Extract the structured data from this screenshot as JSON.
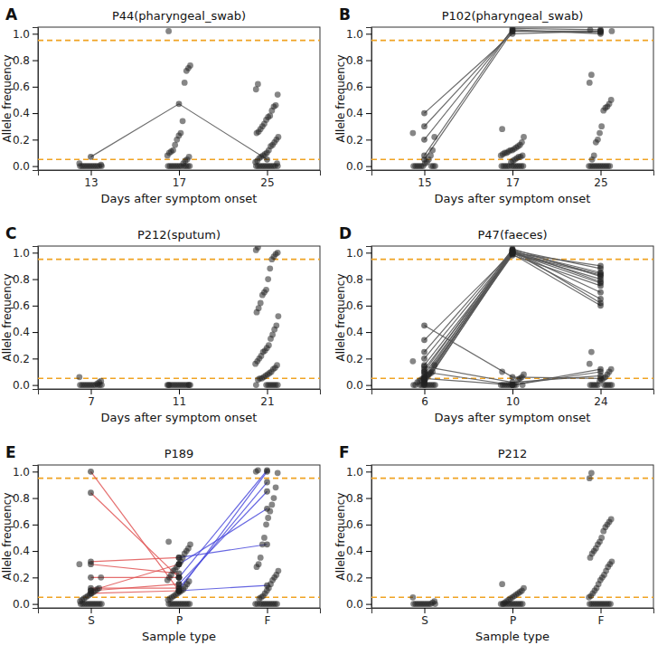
{
  "chart_data": [
    {
      "type": "scatter",
      "panel_label": "A",
      "title": "P44(pharyngeal_swab)",
      "x_label": "Days after symptom onset",
      "y_label": "Allele frequency",
      "categories": [
        "13",
        "17",
        "25"
      ],
      "ylim": [
        -0.03,
        1.05
      ],
      "yticks": [
        {
          "value": 0,
          "label": "0.0"
        },
        {
          "value": 0.2,
          "label": "0.2"
        },
        {
          "value": 0.4,
          "label": "0.4"
        },
        {
          "value": 0.6,
          "label": "0.6"
        },
        {
          "value": 0.8,
          "label": "0.8"
        },
        {
          "value": 1,
          "label": "1.0"
        }
      ],
      "reference_lines": [
        0.05,
        0.95
      ],
      "series": [
        {
          "color": "#555555",
          "values": [
            0.07,
            0.47,
            0.05
          ]
        }
      ],
      "points": [
        [
          0.02,
          0.01,
          0,
          0,
          0,
          0,
          0,
          0,
          0,
          0,
          0,
          0,
          0,
          0
        ],
        [
          1.02,
          0.76,
          0.74,
          0.72,
          0.63,
          0.34,
          0.25,
          0.23,
          0.2,
          0.16,
          0.12,
          0.11,
          0.1,
          0.08,
          0.07,
          0.05,
          0.04,
          0.02,
          0,
          0,
          0,
          0,
          0,
          0,
          0,
          0,
          0,
          0,
          0,
          0
        ],
        [
          0.62,
          0.58,
          0.54,
          0.46,
          0.45,
          0.42,
          0.38,
          0.37,
          0.35,
          0.32,
          0.3,
          0.28,
          0.26,
          0.25,
          0.22,
          0.2,
          0.18,
          0.16,
          0.15,
          0.12,
          0.1,
          0.09,
          0.08,
          0.07,
          0.06,
          0.04,
          0.03,
          0.02,
          0,
          0,
          0,
          0,
          0,
          0,
          0,
          0,
          0,
          0,
          0,
          0
        ]
      ]
    },
    {
      "type": "scatter",
      "panel_label": "B",
      "title": "P102(pharyngeal_swab)",
      "x_label": "Days after symptom onset",
      "y_label": "Allele frequency",
      "categories": [
        "15",
        "17",
        "25"
      ],
      "ylim": [
        -0.03,
        1.05
      ],
      "yticks": [
        {
          "value": 0,
          "label": "0.0"
        },
        {
          "value": 0.2,
          "label": "0.2"
        },
        {
          "value": 0.4,
          "label": "0.4"
        },
        {
          "value": 0.6,
          "label": "0.6"
        },
        {
          "value": 0.8,
          "label": "0.8"
        },
        {
          "value": 1,
          "label": "1.0"
        }
      ],
      "reference_lines": [
        0.05,
        0.95
      ],
      "series": [
        {
          "color": "#555555",
          "values": [
            0.4,
            1.0,
            1.02
          ]
        },
        {
          "color": "#555555",
          "values": [
            0.3,
            1.02,
            1.01
          ]
        },
        {
          "color": "#555555",
          "values": [
            0.2,
            1.03,
            1.0
          ]
        },
        {
          "color": "#555555",
          "values": [
            0.08,
            1.04,
            1.03
          ]
        },
        {
          "color": "#555555",
          "values": [
            0.05,
            1.02,
            1.02
          ]
        }
      ],
      "points": [
        [
          0.25,
          0.22,
          0.12,
          0.08,
          0.05,
          0.03,
          0.02,
          0,
          0,
          0,
          0,
          0,
          0,
          0,
          0,
          0
        ],
        [
          0.28,
          0.22,
          0.18,
          0.16,
          0.15,
          0.14,
          0.13,
          0.12,
          0.12,
          0.11,
          0.1,
          0.1,
          0.09,
          0.08,
          0.08,
          0.07,
          0.07,
          0.06,
          0.05,
          0.04,
          0.03,
          0,
          0,
          0,
          0,
          0,
          0,
          0,
          0,
          0,
          0,
          0,
          0
        ],
        [
          0.69,
          0.63,
          0.5,
          0.47,
          0.45,
          0.44,
          0.42,
          0.3,
          0.25,
          0.2,
          0.18,
          0.08,
          0.05,
          1.03,
          1.02,
          0,
          0,
          0,
          0,
          0,
          0,
          0,
          0,
          0,
          0,
          0,
          0
        ]
      ]
    },
    {
      "type": "scatter",
      "panel_label": "C",
      "title": "P212(sputum)",
      "x_label": "Days after symptom onset",
      "y_label": "Allele frequency",
      "categories": [
        "7",
        "11",
        "21"
      ],
      "ylim": [
        -0.03,
        1.05
      ],
      "yticks": [
        {
          "value": 0,
          "label": "0.0"
        },
        {
          "value": 0.2,
          "label": "0.2"
        },
        {
          "value": 0.4,
          "label": "0.4"
        },
        {
          "value": 0.6,
          "label": "0.6"
        },
        {
          "value": 0.8,
          "label": "0.8"
        },
        {
          "value": 1,
          "label": "1.0"
        }
      ],
      "reference_lines": [
        0.05,
        0.95
      ],
      "series": [],
      "points": [
        [
          0.06,
          0.03,
          0.02,
          0.01,
          0,
          0,
          0,
          0,
          0,
          0,
          0,
          0,
          0,
          0,
          0,
          0
        ],
        [
          0,
          0,
          0,
          0,
          0,
          0,
          0,
          0,
          0,
          0,
          0,
          0,
          0,
          0,
          0
        ],
        [
          1.04,
          1.02,
          1.0,
          0.99,
          0.97,
          0.95,
          0.88,
          0.8,
          0.72,
          0.7,
          0.68,
          0.62,
          0.58,
          0.55,
          0.52,
          0.45,
          0.42,
          0.38,
          0.35,
          0.3,
          0.28,
          0.26,
          0.25,
          0.22,
          0.2,
          0.18,
          0.16,
          0.15,
          0.13,
          0.12,
          0.1,
          0.09,
          0.08,
          0.07,
          0.06,
          0.05,
          0.05,
          0.04,
          0,
          0,
          0,
          0,
          0,
          0,
          0,
          0
        ]
      ]
    },
    {
      "type": "scatter",
      "panel_label": "D",
      "title": "P47(faeces)",
      "x_label": "Days after symptom onset",
      "y_label": "Allele frequency",
      "categories": [
        "6",
        "10",
        "24"
      ],
      "ylim": [
        -0.03,
        1.05
      ],
      "yticks": [
        {
          "value": 0,
          "label": "0.0"
        },
        {
          "value": 0.2,
          "label": "0.2"
        },
        {
          "value": 0.4,
          "label": "0.4"
        },
        {
          "value": 0.6,
          "label": "0.6"
        },
        {
          "value": 0.8,
          "label": "0.8"
        },
        {
          "value": 1,
          "label": "1.0"
        }
      ],
      "reference_lines": [
        0.05,
        0.95
      ],
      "series": [
        {
          "color": "#555555",
          "values": [
            0.34,
            1.0,
            0.9
          ]
        },
        {
          "color": "#555555",
          "values": [
            0.25,
            1.02,
            0.88
          ]
        },
        {
          "color": "#555555",
          "values": [
            0.2,
            1.01,
            0.85
          ]
        },
        {
          "color": "#555555",
          "values": [
            0.15,
            1.0,
            0.84
          ]
        },
        {
          "color": "#555555",
          "values": [
            0.12,
            0.99,
            0.83
          ]
        },
        {
          "color": "#555555",
          "values": [
            0.1,
            1.03,
            0.82
          ]
        },
        {
          "color": "#555555",
          "values": [
            0.08,
            1.0,
            0.8
          ]
        },
        {
          "color": "#555555",
          "values": [
            0.06,
            1.02,
            0.78
          ]
        },
        {
          "color": "#555555",
          "values": [
            0.05,
            0.98,
            0.75
          ]
        },
        {
          "color": "#555555",
          "values": [
            0.04,
            1.01,
            0.7
          ]
        },
        {
          "color": "#555555",
          "values": [
            0.03,
            1.0,
            0.65
          ]
        },
        {
          "color": "#555555",
          "values": [
            0.02,
            1.02,
            0.62
          ]
        },
        {
          "color": "#555555",
          "values": [
            0.01,
            0.99,
            0.6
          ]
        },
        {
          "color": "#555555",
          "values": [
            0,
            1.0,
            0.77
          ]
        },
        {
          "color": "#555555",
          "values": [
            0.45,
            0.06,
            0.05
          ]
        },
        {
          "color": "#555555",
          "values": [
            0.14,
            0.02,
            0.07
          ]
        },
        {
          "color": "#555555",
          "values": [
            0.1,
            0,
            0.12
          ]
        },
        {
          "color": "#555555",
          "values": [
            0.05,
            0,
            0.1
          ]
        }
      ],
      "points": [
        [
          0.18,
          0.15,
          0.1,
          0.09,
          0.08,
          0.07,
          0.06,
          0.05,
          0.04,
          0.03,
          0.02,
          0,
          0,
          0,
          0,
          0,
          0,
          0,
          0,
          0,
          0,
          0
        ],
        [
          0.1,
          0.08,
          0.06,
          0.05,
          0.04,
          0,
          0,
          0,
          0,
          0,
          0,
          0,
          0,
          0,
          0
        ],
        [
          0.25,
          0.16,
          0.12,
          0.1,
          0.08,
          0.06,
          0.05,
          0.04,
          0.03,
          0,
          0,
          0,
          0,
          0,
          0,
          0,
          0,
          0,
          0
        ]
      ]
    },
    {
      "type": "scatter",
      "panel_label": "E",
      "title": "P189",
      "x_label": "Sample type",
      "y_label": "Allele frequency",
      "categories": [
        "S",
        "P",
        "F"
      ],
      "ylim": [
        -0.03,
        1.05
      ],
      "yticks": [
        {
          "value": 0,
          "label": "0.0"
        },
        {
          "value": 0.2,
          "label": "0.2"
        },
        {
          "value": 0.4,
          "label": "0.4"
        },
        {
          "value": 0.6,
          "label": "0.6"
        },
        {
          "value": 0.8,
          "label": "0.8"
        },
        {
          "value": 1,
          "label": "1.0"
        }
      ],
      "reference_lines": [
        0.05,
        0.95
      ],
      "series": [
        {
          "color": "#e05555",
          "values": [
            1.0,
            0.1,
            null
          ]
        },
        {
          "color": "#e05555",
          "values": [
            0.84,
            0.2,
            null
          ]
        },
        {
          "color": "#e05555",
          "values": [
            0.32,
            0.35,
            null
          ]
        },
        {
          "color": "#e05555",
          "values": [
            0.3,
            0.23,
            null
          ]
        },
        {
          "color": "#e05555",
          "values": [
            0.2,
            0.2,
            null
          ]
        },
        {
          "color": "#e05555",
          "values": [
            0.12,
            0.12,
            null
          ]
        },
        {
          "color": "#e05555",
          "values": [
            0.1,
            0.3,
            null
          ]
        },
        {
          "color": "#e05555",
          "values": [
            0.1,
            0.15,
            null
          ]
        },
        {
          "color": "#e05555",
          "values": [
            0.08,
            0.1,
            null
          ]
        },
        {
          "color": "#4b4bdc",
          "values": [
            null,
            0.1,
            1.0
          ]
        },
        {
          "color": "#4b4bdc",
          "values": [
            null,
            0.12,
            0.92
          ]
        },
        {
          "color": "#4b4bdc",
          "values": [
            null,
            0.15,
            0.85
          ]
        },
        {
          "color": "#4b4bdc",
          "values": [
            null,
            0.2,
            1.01
          ]
        },
        {
          "color": "#4b4bdc",
          "values": [
            null,
            0.3,
            0.72
          ]
        },
        {
          "color": "#4b4bdc",
          "values": [
            null,
            0.35,
            0.45
          ]
        },
        {
          "color": "#4b4bdc",
          "values": [
            null,
            0.1,
            0.14
          ]
        }
      ],
      "points": [
        [
          0.3,
          0.2,
          0.12,
          0.11,
          0.1,
          0.09,
          0.08,
          0.07,
          0.06,
          0.05,
          0.04,
          0.03,
          0.02,
          0,
          0,
          0,
          0,
          0,
          0,
          0,
          0,
          0,
          0,
          0,
          0
        ],
        [
          0.47,
          0.45,
          0.42,
          0.4,
          0.38,
          0.35,
          0.32,
          0.3,
          0.28,
          0.26,
          0.25,
          0.22,
          0.2,
          0.18,
          0.17,
          0.15,
          0.13,
          0.11,
          0.1,
          0.09,
          0.08,
          0.07,
          0.06,
          0.05,
          0.04,
          0.03,
          0,
          0,
          0,
          0,
          0,
          0,
          0,
          0,
          0,
          0,
          0,
          0
        ],
        [
          1.01,
          1.0,
          0.99,
          0.88,
          0.8,
          0.75,
          0.7,
          0.65,
          0.6,
          0.5,
          0.45,
          0.35,
          0.3,
          0.28,
          0.25,
          0.22,
          0.2,
          0.18,
          0.15,
          0.12,
          0.1,
          0.08,
          0.06,
          0.05,
          0.04,
          0,
          0,
          0,
          0,
          0,
          0,
          0,
          0,
          0,
          0,
          0,
          0
        ]
      ]
    },
    {
      "type": "scatter",
      "panel_label": "F",
      "title": "P212",
      "x_label": "Sample type",
      "y_label": "Allele frequency",
      "categories": [
        "S",
        "P",
        "F"
      ],
      "ylim": [
        -0.03,
        1.05
      ],
      "yticks": [
        {
          "value": 0,
          "label": "0.0"
        },
        {
          "value": 0.2,
          "label": "0.2"
        },
        {
          "value": 0.4,
          "label": "0.4"
        },
        {
          "value": 0.6,
          "label": "0.6"
        },
        {
          "value": 0.8,
          "label": "0.8"
        },
        {
          "value": 1,
          "label": "1.0"
        }
      ],
      "reference_lines": [
        0.05,
        0.95
      ],
      "series": [],
      "points": [
        [
          0.05,
          0.02,
          0.01,
          0,
          0,
          0,
          0,
          0,
          0,
          0,
          0,
          0,
          0,
          0
        ],
        [
          0.15,
          0.12,
          0.1,
          0.09,
          0.08,
          0.07,
          0.06,
          0.05,
          0.04,
          0.03,
          0.02,
          0.01,
          0,
          0,
          0,
          0,
          0,
          0,
          0,
          0,
          0,
          0,
          0,
          0,
          0
        ],
        [
          0.99,
          0.95,
          0.64,
          0.62,
          0.6,
          0.58,
          0.55,
          0.5,
          0.47,
          0.45,
          0.42,
          0.4,
          0.38,
          0.35,
          0.32,
          0.3,
          0.28,
          0.25,
          0.22,
          0.2,
          0.18,
          0.15,
          0.12,
          0.1,
          0.08,
          0.06,
          0.05,
          0,
          0,
          0,
          0,
          0,
          0,
          0,
          0,
          0,
          0,
          0,
          0
        ]
      ]
    }
  ]
}
